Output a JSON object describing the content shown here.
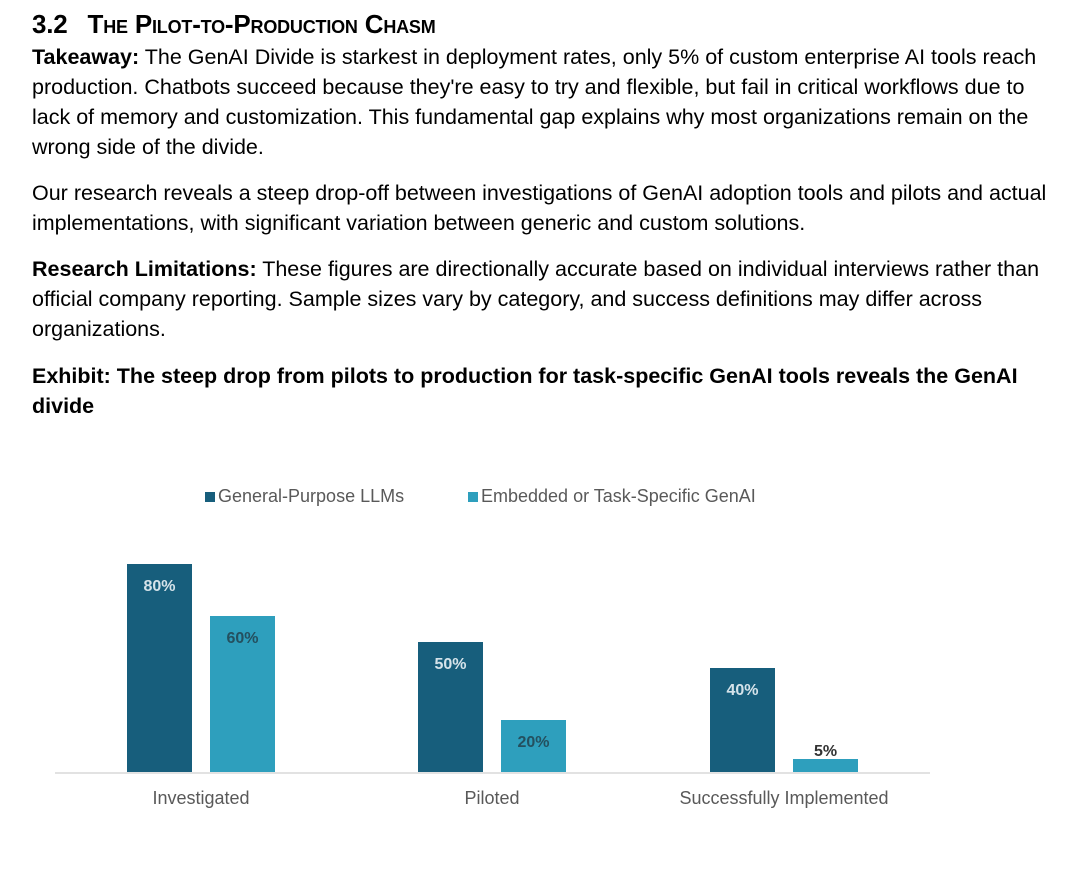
{
  "section": {
    "number": "3.2",
    "title": "The Pilot-to-Production Chasm"
  },
  "takeaway": {
    "label": "Takeaway:",
    "text": " The GenAI Divide is starkest in deployment rates, only 5% of custom enterprise AI tools reach production. Chatbots succeed because they're easy to try and flexible, but fail in critical workflows due to lack of memory and customization. This fundamental gap explains why most organizations remain on the wrong side of the divide."
  },
  "research": {
    "text": "Our research reveals a steep drop-off between investigations of GenAI adoption tools and pilots and actual implementations, with significant variation between generic and custom solutions."
  },
  "limitations": {
    "label": "Research Limitations:",
    "text": " These figures are directionally accurate based on individual interviews rather than official company reporting. Sample sizes vary by category, and success definitions may differ across organizations."
  },
  "exhibit": {
    "title": "Exhibit: The steep drop from pilots to production for task-specific GenAI tools reveals the GenAI divide"
  },
  "colors": {
    "series_general": "#175e7c",
    "series_embedded": "#2e9fbd",
    "label_on_dark": "#d5e3ea",
    "label_on_light": "#24505f",
    "axis": "#d9d9d9",
    "tick_text": "#595959"
  },
  "chart_data": {
    "type": "bar",
    "title": "",
    "xlabel": "",
    "ylabel": "",
    "ylim": [
      0,
      100
    ],
    "grid": false,
    "legend_position": "top-center",
    "categories": [
      "Investigated",
      "Piloted",
      "Successfully Implemented"
    ],
    "series": [
      {
        "name": "General-Purpose LLMs",
        "values": [
          80,
          50,
          40
        ],
        "labels": [
          "80%",
          "50%",
          "40%"
        ]
      },
      {
        "name": "Embedded or Task-Specific GenAI",
        "values": [
          60,
          20,
          5
        ],
        "labels": [
          "60%",
          "20%",
          "5%"
        ]
      }
    ]
  }
}
